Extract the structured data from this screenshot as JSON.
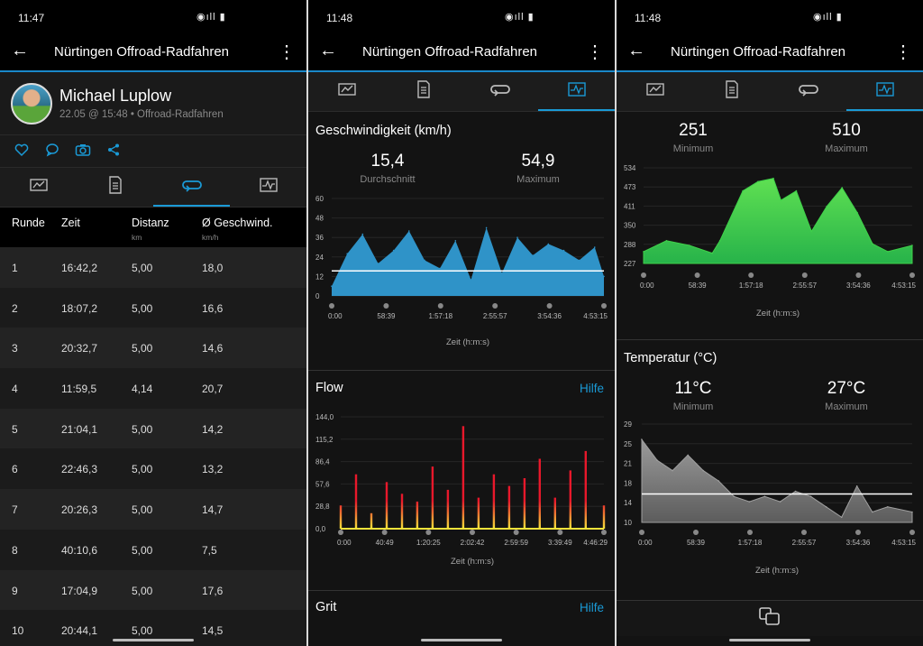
{
  "status": {
    "time1": "11:47",
    "time2": "11:48",
    "time3": "11:48",
    "icons": "◉ıll ▮"
  },
  "appbar": {
    "title": "Nürtingen Offroad-Radfahren",
    "back_glyph": "←",
    "more_glyph": "⋮"
  },
  "profile": {
    "name": "Michael Luplow",
    "subtitle": "22.05 @ 15:48 • Offroad-Radfahren"
  },
  "social_icons": [
    "heart-icon",
    "comment-icon",
    "camera-icon",
    "share-icon"
  ],
  "tabs": [
    "summary-icon",
    "details-icon",
    "laps-icon",
    "charts-icon"
  ],
  "laps": {
    "headers": [
      {
        "label": "Runde",
        "unit": ""
      },
      {
        "label": "Zeit",
        "unit": ""
      },
      {
        "label": "Distanz",
        "unit": "km"
      },
      {
        "label": "Ø Geschwind.",
        "unit": "km/h"
      }
    ],
    "rows": [
      [
        "1",
        "16:42,2",
        "5,00",
        "18,0"
      ],
      [
        "2",
        "18:07,2",
        "5,00",
        "16,6"
      ],
      [
        "3",
        "20:32,7",
        "5,00",
        "14,6"
      ],
      [
        "4",
        "11:59,5",
        "4,14",
        "20,7"
      ],
      [
        "5",
        "21:04,1",
        "5,00",
        "14,2"
      ],
      [
        "6",
        "22:46,3",
        "5,00",
        "13,2"
      ],
      [
        "7",
        "20:26,3",
        "5,00",
        "14,7"
      ],
      [
        "8",
        "40:10,6",
        "5,00",
        "7,5"
      ],
      [
        "9",
        "17:04,9",
        "5,00",
        "17,6"
      ],
      [
        "10",
        "20:44,1",
        "5,00",
        "14,5"
      ]
    ]
  },
  "speed": {
    "title": "Geschwindigkeit (km/h)",
    "avg_value": "15,4",
    "avg_label": "Durchschnitt",
    "max_value": "54,9",
    "max_label": "Maximum",
    "xlabel": "Zeit (h:m:s)"
  },
  "flow": {
    "title": "Flow",
    "help": "Hilfe",
    "xlabel": "Zeit (h:m:s)"
  },
  "grit": {
    "title": "Grit",
    "help": "Hilfe"
  },
  "elevation": {
    "min_value": "251",
    "min_label": "Minimum",
    "max_value": "510",
    "max_label": "Maximum",
    "xlabel": "Zeit (h:m:s)"
  },
  "temperature": {
    "title": "Temperatur (°C)",
    "min_value": "11°C",
    "min_label": "Minimum",
    "max_value": "27°C",
    "max_label": "Maximum",
    "xlabel": "Zeit (h:m:s)"
  },
  "colors": {
    "accent": "#1a9ad6",
    "speed_fill": "#2f93c8",
    "elevation_fill": "#3fd14a",
    "temperature_fill": "#8c8c8c",
    "flow_high": "#e8182b",
    "flow_low": "#f5e33a"
  },
  "chart_data": [
    {
      "type": "area",
      "title": "Geschwindigkeit (km/h)",
      "xlabel": "Zeit (h:m:s)",
      "ylim": [
        0,
        60
      ],
      "yticks": [
        "0",
        "12",
        "24",
        "36",
        "48",
        "60"
      ],
      "xticks": [
        "0:00",
        "58:39",
        "1:57:18",
        "2:55:57",
        "3:54:36",
        "4:53:15"
      ],
      "x_seconds": [
        0,
        1000,
        2000,
        3000,
        4000,
        5000,
        6000,
        7000,
        8000,
        9000,
        10000,
        11000,
        12000,
        13000,
        14000,
        15000,
        16000,
        17000,
        17595
      ],
      "values": [
        6,
        26,
        38,
        20,
        28,
        40,
        22,
        17,
        34,
        10,
        42,
        14,
        36,
        25,
        32,
        28,
        22,
        30,
        12
      ],
      "average": 15.4,
      "maximum": 54.9
    },
    {
      "type": "bar",
      "title": "Flow",
      "xlabel": "Zeit (h:m:s)",
      "ylim": [
        0,
        144
      ],
      "yticks": [
        "0,0",
        "28,8",
        "57,6",
        "86,4",
        "115,2",
        "144,0"
      ],
      "xticks": [
        "0:00",
        "40:49",
        "1:20:25",
        "2:02:42",
        "2:59:59",
        "3:39:49",
        "4:46:29"
      ],
      "x_seconds": [
        0,
        1000,
        2000,
        3000,
        4000,
        5000,
        6000,
        7000,
        8000,
        9000,
        10000,
        11000,
        12000,
        13000,
        14000,
        15000,
        16000,
        17189
      ],
      "values": [
        30,
        70,
        20,
        60,
        45,
        35,
        80,
        50,
        132,
        40,
        70,
        55,
        65,
        90,
        40,
        75,
        100,
        30
      ]
    },
    {
      "type": "area",
      "title": "",
      "xlabel": "Zeit (h:m:s)",
      "ylim": [
        227,
        534
      ],
      "yticks": [
        "227",
        "288",
        "350",
        "411",
        "473",
        "534"
      ],
      "xticks": [
        "0:00",
        "58:39",
        "1:57:18",
        "2:55:57",
        "3:54:36",
        "4:53:15"
      ],
      "x_seconds": [
        0,
        1500,
        3000,
        4500,
        5000,
        6500,
        7500,
        8500,
        9000,
        10000,
        11000,
        12000,
        13000,
        14000,
        15000,
        16000,
        17595
      ],
      "values": [
        265,
        300,
        285,
        260,
        300,
        460,
        490,
        500,
        430,
        460,
        330,
        410,
        470,
        390,
        290,
        265,
        285
      ],
      "minimum": 251,
      "maximum": 510
    },
    {
      "type": "area",
      "title": "Temperatur (°C)",
      "xlabel": "Zeit (h:m:s)",
      "ylim": [
        10,
        29
      ],
      "yticks": [
        "10",
        "14",
        "18",
        "21",
        "25",
        "29"
      ],
      "xticks": [
        "0:00",
        "58:39",
        "1:57:18",
        "2:55:57",
        "3:54:36",
        "4:53:15"
      ],
      "x_seconds": [
        0,
        1000,
        2000,
        3000,
        4000,
        5000,
        6000,
        7000,
        8000,
        9000,
        10000,
        11000,
        12000,
        13000,
        14000,
        15000,
        16000,
        17595
      ],
      "values": [
        26,
        22,
        20,
        23,
        20,
        18,
        15,
        14,
        15,
        14,
        16,
        15,
        13,
        11,
        17,
        12,
        13,
        12
      ],
      "average": 15.5,
      "minimum": 11,
      "maximum": 27
    }
  ]
}
